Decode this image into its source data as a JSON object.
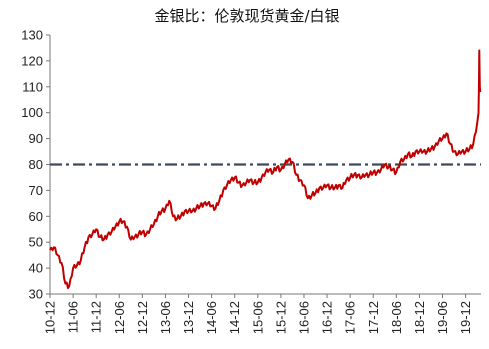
{
  "chart_data": {
    "type": "line",
    "title": "金银比：伦敦现货黄金/白银",
    "xlabel": "",
    "ylabel": "",
    "ylim": [
      30,
      130
    ],
    "yticks": [
      30,
      40,
      50,
      60,
      70,
      80,
      90,
      100,
      110,
      120,
      130
    ],
    "xlim": [
      "2010-12",
      "2020-03"
    ],
    "xticks": [
      "10-12",
      "11-06",
      "11-12",
      "12-06",
      "12-12",
      "13-06",
      "13-12",
      "14-06",
      "14-12",
      "15-06",
      "15-12",
      "16-06",
      "16-12",
      "17-06",
      "17-12",
      "18-06",
      "18-12",
      "19-06",
      "19-12"
    ],
    "grid": false,
    "reference_line": {
      "value": 80,
      "style": "dash-dot",
      "color": "#3d4a5a"
    },
    "series": [
      {
        "color": "#c00000",
        "points": [
          [
            "2010-12",
            47
          ],
          [
            "2011-01",
            48
          ],
          [
            "2011-02",
            45
          ],
          [
            "2011-03",
            42
          ],
          [
            "2011-04",
            34
          ],
          [
            "2011-05",
            33
          ],
          [
            "2011-06",
            40
          ],
          [
            "2011-07",
            41
          ],
          [
            "2011-08",
            43
          ],
          [
            "2011-09",
            48
          ],
          [
            "2011-10",
            52
          ],
          [
            "2011-11",
            53
          ],
          [
            "2011-12",
            55
          ],
          [
            "2012-01",
            52
          ],
          [
            "2012-02",
            51
          ],
          [
            "2012-03",
            53
          ],
          [
            "2012-04",
            54
          ],
          [
            "2012-05",
            56
          ],
          [
            "2012-06",
            58
          ],
          [
            "2012-07",
            58
          ],
          [
            "2012-08",
            56
          ],
          [
            "2012-09",
            51
          ],
          [
            "2012-10",
            52
          ],
          [
            "2012-11",
            53
          ],
          [
            "2012-12",
            54
          ],
          [
            "2013-01",
            53
          ],
          [
            "2013-02",
            55
          ],
          [
            "2013-03",
            57
          ],
          [
            "2013-04",
            60
          ],
          [
            "2013-05",
            62
          ],
          [
            "2013-06",
            63
          ],
          [
            "2013-07",
            66
          ],
          [
            "2013-08",
            60
          ],
          [
            "2013-09",
            59
          ],
          [
            "2013-10",
            60
          ],
          [
            "2013-11",
            62
          ],
          [
            "2013-12",
            62
          ],
          [
            "2014-01",
            62
          ],
          [
            "2014-02",
            63
          ],
          [
            "2014-03",
            64
          ],
          [
            "2014-04",
            65
          ],
          [
            "2014-05",
            65
          ],
          [
            "2014-06",
            64
          ],
          [
            "2014-07",
            63
          ],
          [
            "2014-08",
            66
          ],
          [
            "2014-09",
            70
          ],
          [
            "2014-10",
            72
          ],
          [
            "2014-11",
            74
          ],
          [
            "2014-12",
            75
          ],
          [
            "2015-01",
            73
          ],
          [
            "2015-02",
            72
          ],
          [
            "2015-03",
            73
          ],
          [
            "2015-04",
            74
          ],
          [
            "2015-05",
            73
          ],
          [
            "2015-06",
            73
          ],
          [
            "2015-07",
            75
          ],
          [
            "2015-08",
            77
          ],
          [
            "2015-09",
            78
          ],
          [
            "2015-10",
            77
          ],
          [
            "2015-11",
            79
          ],
          [
            "2015-12",
            78
          ],
          [
            "2016-01",
            80
          ],
          [
            "2016-02",
            82
          ],
          [
            "2016-03",
            81
          ],
          [
            "2016-04",
            76
          ],
          [
            "2016-05",
            74
          ],
          [
            "2016-06",
            72
          ],
          [
            "2016-07",
            67
          ],
          [
            "2016-08",
            68
          ],
          [
            "2016-09",
            69
          ],
          [
            "2016-10",
            71
          ],
          [
            "2016-11",
            71
          ],
          [
            "2016-12",
            72
          ],
          [
            "2017-01",
            71
          ],
          [
            "2017-02",
            71
          ],
          [
            "2017-03",
            72
          ],
          [
            "2017-04",
            71
          ],
          [
            "2017-05",
            74
          ],
          [
            "2017-06",
            75
          ],
          [
            "2017-07",
            76
          ],
          [
            "2017-08",
            76
          ],
          [
            "2017-09",
            75
          ],
          [
            "2017-10",
            76
          ],
          [
            "2017-11",
            76
          ],
          [
            "2017-12",
            77
          ],
          [
            "2018-01",
            77
          ],
          [
            "2018-02",
            78
          ],
          [
            "2018-03",
            80
          ],
          [
            "2018-04",
            79
          ],
          [
            "2018-05",
            78
          ],
          [
            "2018-06",
            77
          ],
          [
            "2018-07",
            81
          ],
          [
            "2018-08",
            82
          ],
          [
            "2018-09",
            84
          ],
          [
            "2018-10",
            83
          ],
          [
            "2018-11",
            85
          ],
          [
            "2018-12",
            85
          ],
          [
            "2019-01",
            85
          ],
          [
            "2019-02",
            85
          ],
          [
            "2019-03",
            86
          ],
          [
            "2019-04",
            87
          ],
          [
            "2019-05",
            89
          ],
          [
            "2019-06",
            90
          ],
          [
            "2019-07",
            92
          ],
          [
            "2019-08",
            88
          ],
          [
            "2019-09",
            85
          ],
          [
            "2019-10",
            84
          ],
          [
            "2019-11",
            85
          ],
          [
            "2019-12",
            85
          ],
          [
            "2020-01",
            86
          ],
          [
            "2020-02",
            88
          ],
          [
            "2020-03",
            96
          ],
          [
            "2020-03-12",
            100
          ],
          [
            "2020-03-16",
            112
          ],
          [
            "2020-03-18",
            124
          ],
          [
            "2020-03-22",
            110
          ],
          [
            "2020-03-26",
            108
          ]
        ]
      }
    ]
  }
}
